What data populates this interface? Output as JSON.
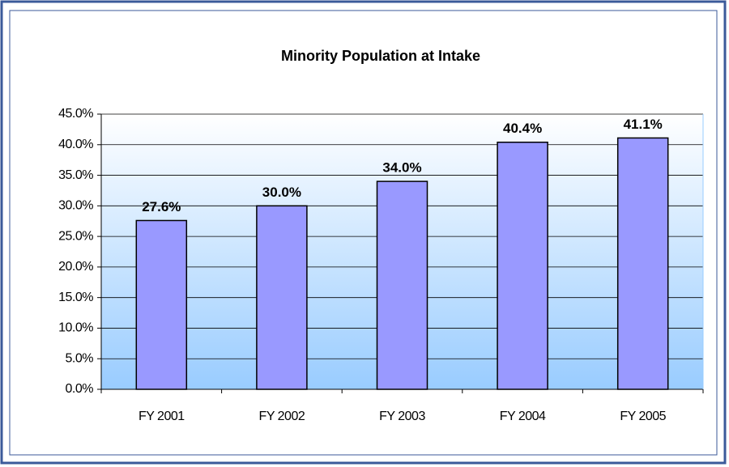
{
  "chart_data": {
    "type": "bar",
    "title": "Minority Population at Intake",
    "categories": [
      "FY 2001",
      "FY 2002",
      "FY 2003",
      "FY 2004",
      "FY 2005"
    ],
    "values": [
      27.6,
      30.0,
      34.0,
      40.4,
      41.1
    ],
    "value_labels": [
      "27.6%",
      "30.0%",
      "34.0%",
      "40.4%",
      "41.1%"
    ],
    "color": "#9999ff",
    "ylim": [
      0,
      45
    ],
    "yticks": [
      {
        "value": 0,
        "label": "0.0%"
      },
      {
        "value": 5,
        "label": "5.0%"
      },
      {
        "value": 10,
        "label": "10.0%"
      },
      {
        "value": 15,
        "label": "15.0%"
      },
      {
        "value": 20,
        "label": "20.0%"
      },
      {
        "value": 25,
        "label": "25.0%"
      },
      {
        "value": 30,
        "label": "30.0%"
      },
      {
        "value": 35,
        "label": "35.0%"
      },
      {
        "value": 40,
        "label": "40.0%"
      },
      {
        "value": 45,
        "label": "45.0%"
      }
    ],
    "grid": true
  }
}
